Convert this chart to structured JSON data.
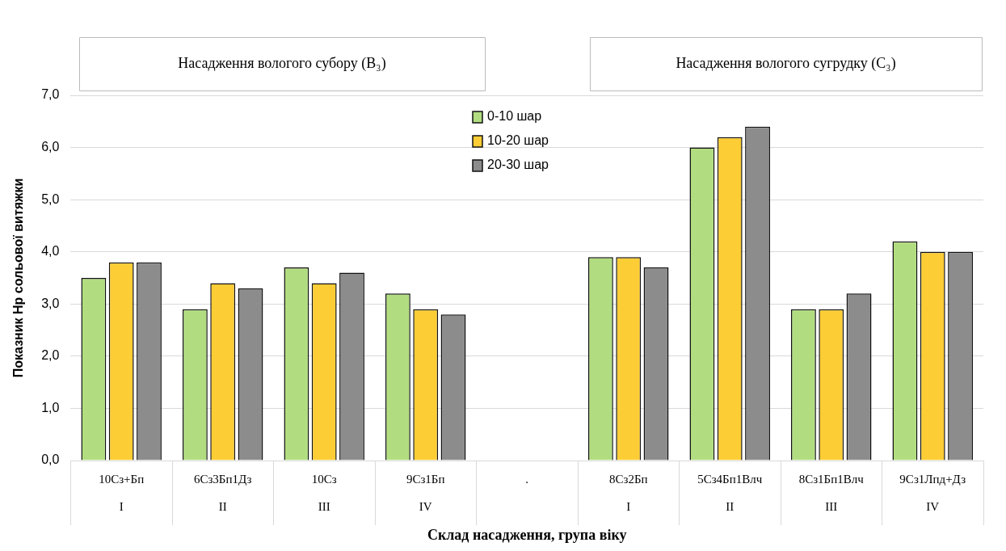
{
  "chart_data": {
    "type": "bar",
    "categories": [
      "10Сз+Бп\nI",
      "6Сз3Бп1Дз\nII",
      "10Сз\nIII",
      "9Сз1Бп\nIV",
      ".",
      "8Сз2Бп\nI",
      "5Сз4Бп1Влч\nII",
      "8Сз1Бп1Влч\nIII",
      "9Сз1Лпд+Дз\nIV"
    ],
    "series": [
      {
        "name": "0-10 шар",
        "color": "#b1dd80",
        "values": [
          3.5,
          2.9,
          3.7,
          3.2,
          null,
          3.9,
          6.0,
          2.9,
          4.2
        ]
      },
      {
        "name": "10-20 шар",
        "color": "#fdcd35",
        "values": [
          3.8,
          3.4,
          3.4,
          2.9,
          null,
          3.9,
          6.2,
          2.9,
          4.0
        ]
      },
      {
        "name": "20-30 шар",
        "color": "#8c8c8c",
        "values": [
          3.8,
          3.3,
          3.6,
          2.8,
          null,
          3.7,
          6.4,
          3.2,
          4.0
        ]
      }
    ],
    "ylim": [
      0,
      7
    ],
    "yticks": [
      {
        "value": 0,
        "label": "0,0"
      },
      {
        "value": 1,
        "label": "1,0"
      },
      {
        "value": 2,
        "label": "2,0"
      },
      {
        "value": 3,
        "label": "3,0"
      },
      {
        "value": 4,
        "label": "4,0"
      },
      {
        "value": 5,
        "label": "5,0"
      },
      {
        "value": 6,
        "label": "6,0"
      },
      {
        "value": 7,
        "label": "7,0"
      }
    ],
    "xlabel": "Склад насадження, група віку",
    "ylabel": "Показник Нр сольової витяжки",
    "annotations": [
      "Насадження вологого субору (B₃)",
      "Насадження вологого сугрудку (C₃)"
    ],
    "grid": "y",
    "legend": "top"
  }
}
